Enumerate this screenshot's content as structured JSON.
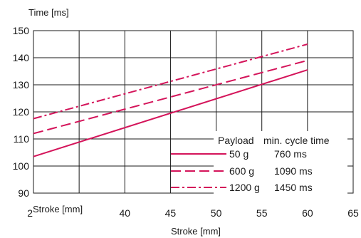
{
  "chart_data": {
    "type": "line",
    "ylabel": "Time [ms]",
    "xlabel": "Stroke [mm]",
    "x_corner_label": "Stroke [mm]",
    "x_corner_tick": "2",
    "xlim": [
      30,
      65
    ],
    "ylim": [
      90,
      150
    ],
    "x_ticks": [
      {
        "value": 40,
        "label": "40"
      },
      {
        "value": 45,
        "label": "45"
      },
      {
        "value": 50,
        "label": "50"
      },
      {
        "value": 55,
        "label": "55"
      },
      {
        "value": 60,
        "label": "60"
      },
      {
        "value": 65,
        "label": "65"
      }
    ],
    "x_gridlines": [
      30,
      35,
      40,
      45,
      50,
      55,
      60
    ],
    "y_ticks": [
      90,
      100,
      110,
      120,
      130,
      140,
      150
    ],
    "grid": true,
    "line_color": "#d4145a",
    "legend": {
      "placement": "bottom-right",
      "header_payload": "Payload",
      "header_cycle": "min. cycle time"
    },
    "series": [
      {
        "payload": "50 g",
        "cycle_time": "760 ms",
        "style": "solid",
        "x": [
          30,
          60
        ],
        "y": [
          103.5,
          135.5
        ]
      },
      {
        "payload": "600 g",
        "cycle_time": "1090 ms",
        "style": "dash",
        "x": [
          30,
          60
        ],
        "y": [
          112,
          139
        ]
      },
      {
        "payload": "1200 g",
        "cycle_time": "1450 ms",
        "style": "dashdot",
        "x": [
          30,
          60
        ],
        "y": [
          117.5,
          145
        ]
      }
    ]
  }
}
